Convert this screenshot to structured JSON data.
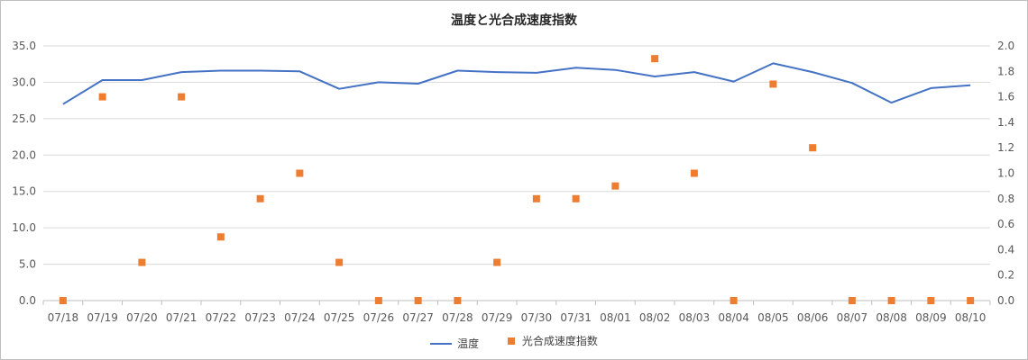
{
  "chart_data": {
    "type": "line",
    "title": "温度と光合成速度指数",
    "categories": [
      "07/18",
      "07/19",
      "07/20",
      "07/21",
      "07/22",
      "07/23",
      "07/24",
      "07/25",
      "07/26",
      "07/27",
      "07/28",
      "07/29",
      "07/30",
      "07/31",
      "08/01",
      "08/02",
      "08/03",
      "08/04",
      "08/05",
      "08/06",
      "08/07",
      "08/08",
      "08/09",
      "08/10"
    ],
    "y_left": {
      "min": 0,
      "max": 35,
      "step": 5,
      "decimals": 1
    },
    "y_right": {
      "min": 0,
      "max": 2.0,
      "step": 0.2,
      "decimals": 1
    },
    "grid": true,
    "legend_position": "bottom",
    "series": [
      {
        "name": "温度",
        "type": "line",
        "axis": "left",
        "color": "#4472c4",
        "values": [
          27.0,
          30.3,
          30.3,
          31.4,
          31.6,
          31.6,
          31.5,
          29.1,
          30.0,
          29.8,
          31.6,
          31.4,
          31.3,
          32.0,
          31.7,
          30.8,
          31.4,
          30.1,
          32.6,
          31.4,
          29.9,
          27.2,
          29.2,
          29.6
        ]
      },
      {
        "name": "光合成速度指数",
        "type": "scatter",
        "axis": "right",
        "color": "#ed7d31",
        "values": [
          0.0,
          1.6,
          0.3,
          1.6,
          0.5,
          0.8,
          1.0,
          0.3,
          0.0,
          0.0,
          0.0,
          0.3,
          0.8,
          0.8,
          0.9,
          1.9,
          1.0,
          0.0,
          1.7,
          1.2,
          0.0,
          0.0,
          0.0,
          0.0
        ]
      }
    ]
  }
}
